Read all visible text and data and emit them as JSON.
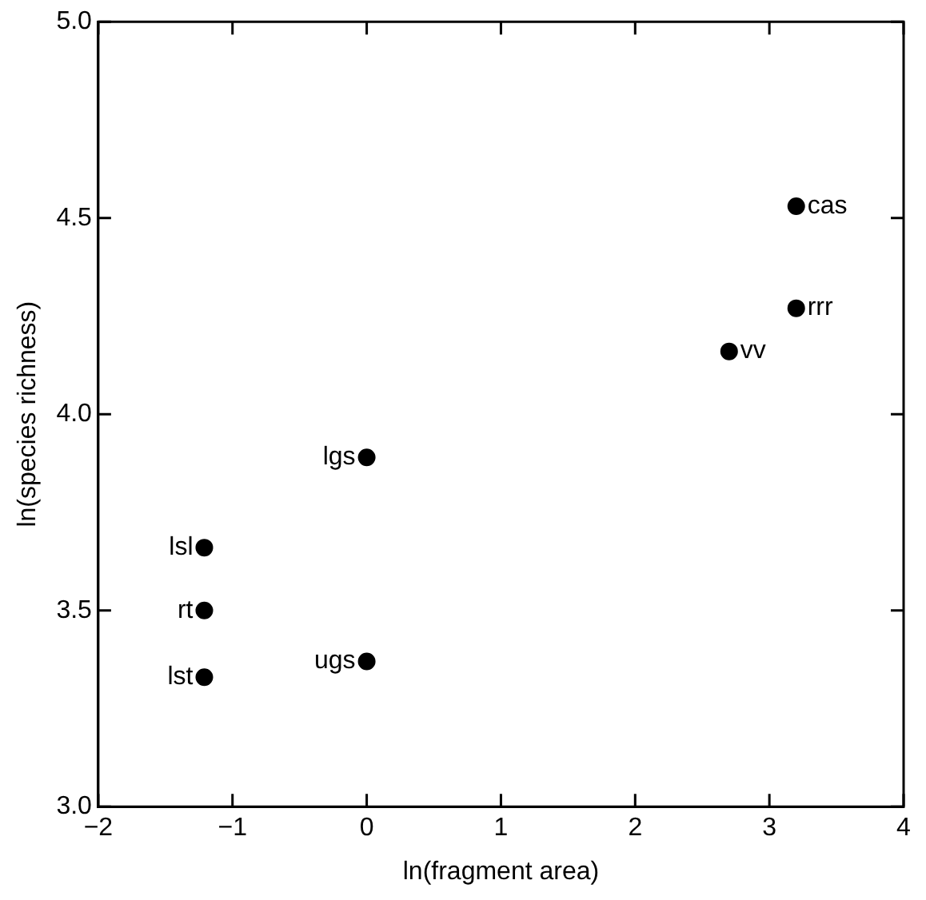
{
  "chart_data": {
    "type": "scatter",
    "xlabel": "ln(fragment area)",
    "ylabel": "ln(species richness)",
    "series": [
      {
        "color": "#000000",
        "x": [
          3.2,
          3.2,
          2.7,
          0,
          -1.21,
          -1.21,
          -1.21,
          0
        ],
        "values": [
          4.53,
          4.27,
          4.16,
          3.89,
          3.66,
          3.5,
          3.33,
          3.37
        ]
      }
    ],
    "annotations": [
      {
        "text": "cas",
        "x": 3.2,
        "y": 4.53
      },
      {
        "text": "rrr",
        "x": 3.2,
        "y": 4.27
      },
      {
        "text": "vv",
        "x": 2.7,
        "y": 4.16
      },
      {
        "text": "lgs",
        "x": 0,
        "y": 3.89
      },
      {
        "text": "lsl",
        "x": -1.21,
        "y": 3.66
      },
      {
        "text": "rt",
        "x": -1.21,
        "y": 3.5
      },
      {
        "text": "lst",
        "x": -1.21,
        "y": 3.33
      },
      {
        "text": "ugs",
        "x": 0,
        "y": 3.37
      }
    ],
    "xlim": [
      -2,
      4
    ],
    "xticks": [
      -2,
      -1,
      0,
      1,
      2,
      3,
      4
    ],
    "ylim": [
      3.0,
      5.0
    ],
    "yticks": [
      {
        "value": 3.0,
        "label": "3.0"
      },
      {
        "value": 3.5,
        "label": "3.5"
      },
      {
        "value": 4.0,
        "label": "4.0"
      },
      {
        "value": 4.5,
        "label": "4.5"
      },
      {
        "value": 5.0,
        "label": "5.0"
      }
    ],
    "grid": false,
    "legend": false,
    "marker": "circle"
  }
}
